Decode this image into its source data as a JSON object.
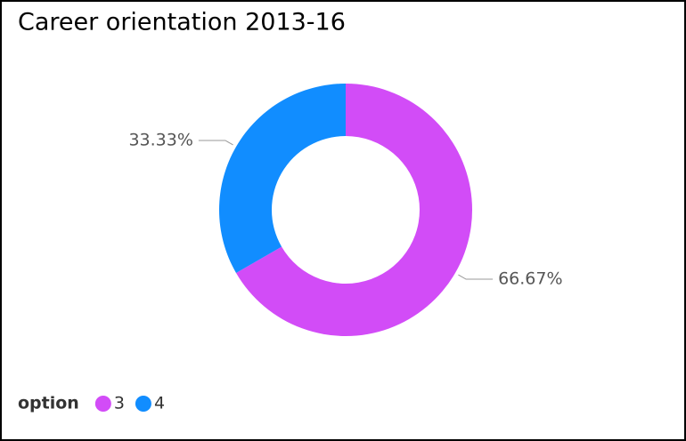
{
  "chart_data": {
    "type": "donut",
    "title": "Career orientation 2013-16",
    "legend_title": "option",
    "categories": [
      "3",
      "4"
    ],
    "values": [
      66.67,
      33.33
    ],
    "value_labels": [
      "66.67%",
      "33.33%"
    ],
    "colors": [
      "#d24cf7",
      "#118dff"
    ],
    "legend": "bottom-left"
  }
}
